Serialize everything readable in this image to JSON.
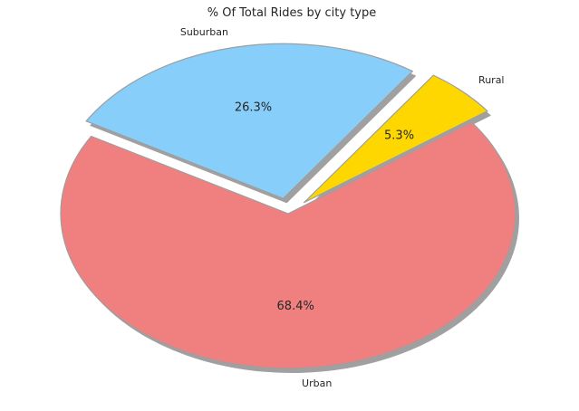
{
  "chart_data": {
    "type": "pie",
    "title": "% Of Total Rides by city type",
    "categories": [
      "Urban",
      "Rural",
      "Suburban"
    ],
    "values": [
      68.4,
      5.3,
      26.3
    ],
    "value_labels": [
      "68.4%",
      "5.3%",
      "26.3%"
    ],
    "colors": [
      "#F08080",
      "#FFD700",
      "#87CEFA"
    ],
    "edge_color": "#9E9E9E",
    "shadow_color": "#A0A0A0",
    "exploded": [
      false,
      true,
      true
    ],
    "start_angle_deg": 150,
    "legend": "none"
  }
}
